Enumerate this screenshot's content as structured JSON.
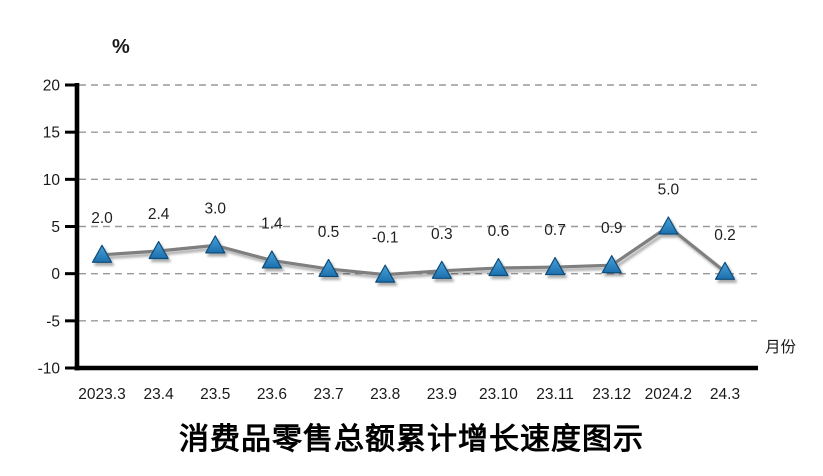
{
  "title": "消费品零售总额累计增长速度图示",
  "chart_data": {
    "type": "line",
    "title": "消费品零售总额累计增长速度图示",
    "ylabel": "%",
    "xlabel": "月份",
    "categories": [
      "2023.3",
      "23.4",
      "23.5",
      "23.6",
      "23.7",
      "23.8",
      "23.9",
      "23.10",
      "23.11",
      "23.12",
      "2024.2",
      "24.3"
    ],
    "values": [
      2.0,
      2.4,
      3.0,
      1.4,
      0.5,
      -0.1,
      0.3,
      0.6,
      0.7,
      0.9,
      5.0,
      0.2
    ],
    "data_labels": [
      "2.0",
      "2.4",
      "3.0",
      "1.4",
      "0.5",
      "-0.1",
      "0.3",
      "0.6",
      "0.7",
      "0.9",
      "5.0",
      "0.2"
    ],
    "ylim": [
      -10,
      20
    ],
    "yticks": [
      20,
      15,
      10,
      5,
      0,
      -5,
      -10
    ],
    "grid": "horizontal-dashed",
    "legend": "none",
    "colors": {
      "line": "#7f7f7f",
      "marker_fill_top": "#48a3da",
      "marker_fill_bottom": "#1c6fad",
      "marker_stroke": "#0f4c78",
      "grid": "#999999",
      "axis": "#000000",
      "text": "#1a1a1a"
    }
  }
}
